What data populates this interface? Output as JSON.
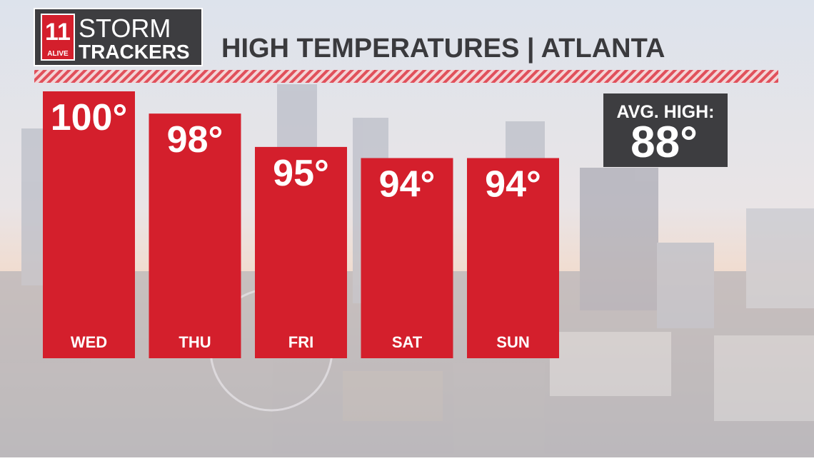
{
  "chart_data": {
    "type": "bar",
    "title": "HIGH TEMPERATURES | ATLANTA",
    "logo": {
      "number": "11",
      "small": "ALIVE",
      "line1": "STORM",
      "line2": "TRACKERS"
    },
    "categories": [
      "WED",
      "THU",
      "FRI",
      "SAT",
      "SUN"
    ],
    "values": [
      100,
      98,
      95,
      94,
      94
    ],
    "value_labels": [
      "100°",
      "98°",
      "95°",
      "94°",
      "94°"
    ],
    "color": "#d41f2c",
    "ylim": [
      76,
      100
    ],
    "annotation": {
      "label": "AVG. HIGH:",
      "value_label": "88°"
    }
  }
}
